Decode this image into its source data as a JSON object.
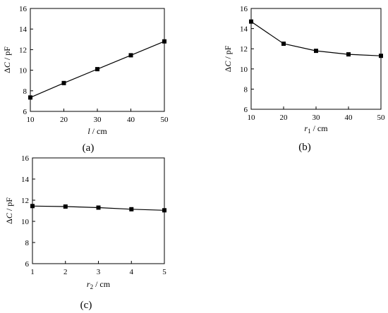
{
  "chart_data": [
    {
      "type": "line",
      "panel_label": "(a)",
      "x": [
        10,
        20,
        30,
        40,
        50
      ],
      "series": [
        {
          "values": [
            7.35,
            8.75,
            10.1,
            11.45,
            12.8
          ]
        }
      ],
      "xlabel_parts": {
        "sym": "l",
        "sub": "",
        "unit": " / cm"
      },
      "ylabel_parts": {
        "pre": "Δ",
        "sym": "C",
        "unit": " / pF"
      },
      "xticks": [
        10,
        20,
        30,
        40,
        50
      ],
      "yticks": [
        6,
        8,
        10,
        12,
        14,
        16
      ],
      "xlim": [
        10,
        50
      ],
      "ylim": [
        6,
        16
      ],
      "grid": false
    },
    {
      "type": "line",
      "panel_label": "(b)",
      "x": [
        10,
        20,
        30,
        40,
        50
      ],
      "series": [
        {
          "values": [
            14.7,
            12.5,
            11.8,
            11.45,
            11.3
          ]
        }
      ],
      "xlabel_parts": {
        "sym": "r",
        "sub": "1",
        "unit": " / cm"
      },
      "ylabel_parts": {
        "pre": "Δ",
        "sym": "C",
        "unit": " / pF"
      },
      "xticks": [
        10,
        20,
        30,
        40,
        50
      ],
      "yticks": [
        6,
        8,
        10,
        12,
        14,
        16
      ],
      "xlim": [
        10,
        50
      ],
      "ylim": [
        6,
        16
      ],
      "grid": false
    },
    {
      "type": "line",
      "panel_label": "(c)",
      "x": [
        1,
        2,
        3,
        4,
        5
      ],
      "series": [
        {
          "values": [
            11.45,
            11.4,
            11.3,
            11.15,
            11.05
          ]
        }
      ],
      "xlabel_parts": {
        "sym": "r",
        "sub": "2",
        "unit": " / cm"
      },
      "ylabel_parts": {
        "pre": "Δ",
        "sym": "C",
        "unit": " / pF"
      },
      "xticks": [
        1,
        2,
        3,
        4,
        5
      ],
      "yticks": [
        6,
        8,
        10,
        12,
        14,
        16
      ],
      "xlim": [
        1,
        5
      ],
      "ylim": [
        6,
        16
      ],
      "grid": false
    }
  ]
}
